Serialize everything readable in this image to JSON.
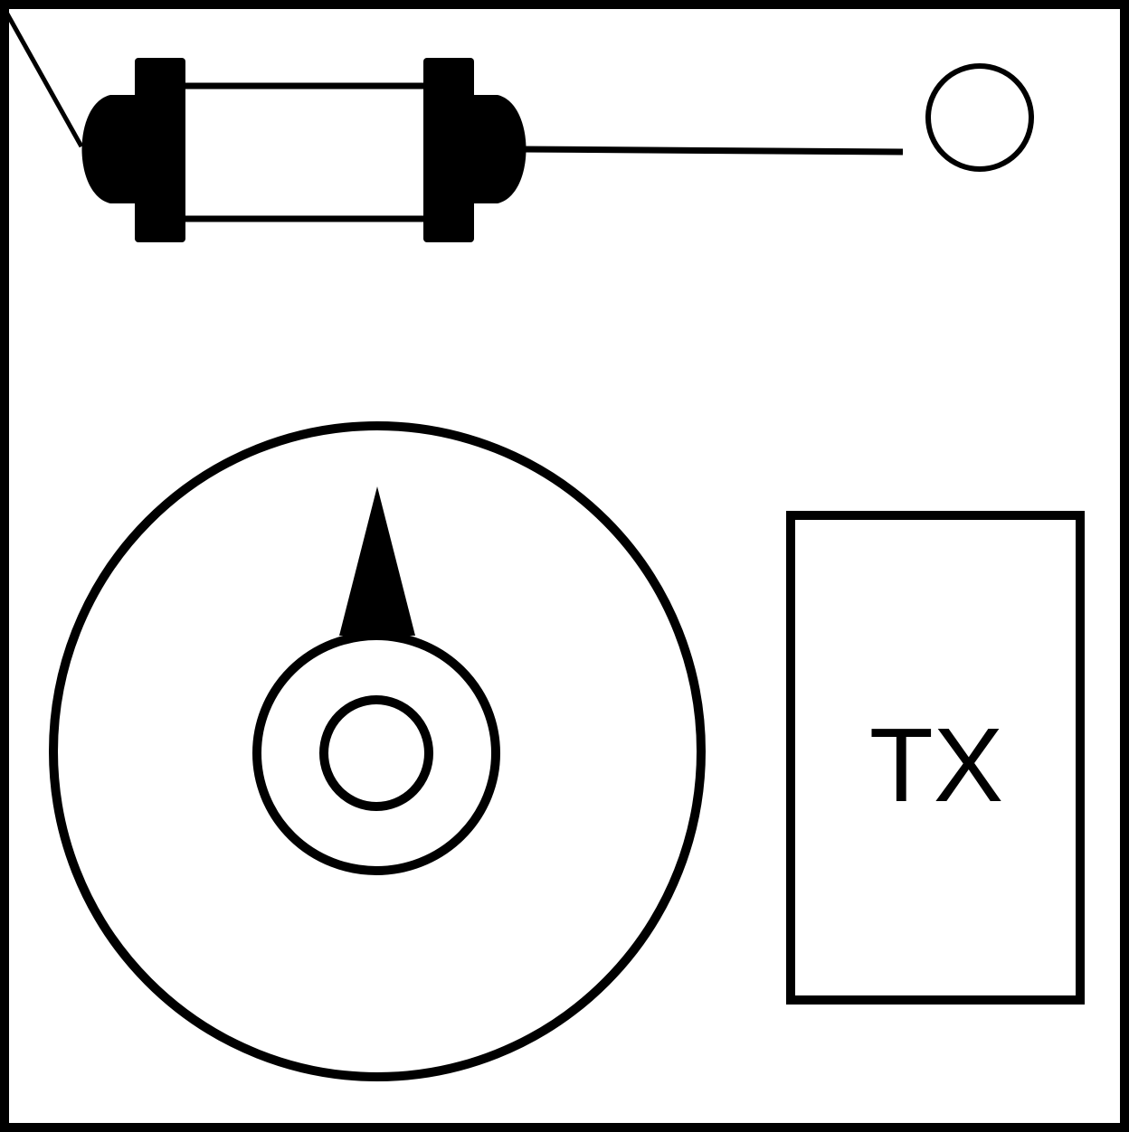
{
  "panel": {
    "label": "TX",
    "colors": {
      "stroke": "#000000",
      "fill": "#000000",
      "background": "#ffffff"
    }
  },
  "icons": {
    "fuse": "fuse-icon",
    "terminal": "terminal-circle-icon",
    "dial": "rotary-dial-icon",
    "pointer": "dial-pointer-icon"
  }
}
